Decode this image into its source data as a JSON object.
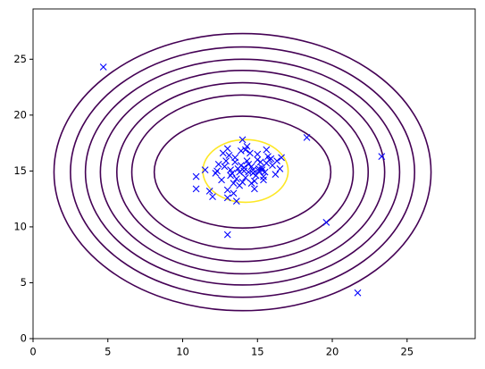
{
  "chart_data": {
    "type": "scatter",
    "xlim": [
      0,
      29.55
    ],
    "ylim": [
      0,
      29.5
    ],
    "xticks": [
      0,
      5,
      10,
      15,
      20,
      25
    ],
    "yticks": [
      0,
      5,
      10,
      15,
      20,
      25
    ],
    "marker": "x",
    "color": "#0000ff",
    "x": [
      4.7,
      18.3,
      23.3,
      19.6,
      21.7,
      13.0,
      10.9,
      10.9,
      12.0,
      13.0,
      13.6,
      11.8,
      16.5,
      14.0,
      12.3,
      12.8,
      13.2,
      13.5,
      13.8,
      14.1,
      14.4,
      14.7,
      15.0,
      15.3,
      15.6,
      15.9,
      12.6,
      13.1,
      13.4,
      13.9,
      14.2,
      14.5,
      14.8,
      15.1,
      15.4,
      15.7,
      16.0,
      12.9,
      13.3,
      13.7,
      14.0,
      14.3,
      14.6,
      14.9,
      15.2,
      15.5,
      13.5,
      13.8,
      14.2,
      14.6,
      15.0,
      15.4,
      12.4,
      13.0,
      13.6,
      14.1,
      14.7,
      15.3,
      15.8,
      16.2,
      13.2,
      13.9,
      14.4,
      15.1,
      12.7,
      14.3,
      15.6,
      13.4,
      14.8,
      16.3,
      11.5,
      12.2,
      16.6,
      13.0
    ],
    "y": [
      24.3,
      18.0,
      16.3,
      10.4,
      4.1,
      9.3,
      14.5,
      13.4,
      12.7,
      12.6,
      12.3,
      13.2,
      15.2,
      17.8,
      15.0,
      15.4,
      14.6,
      15.8,
      14.9,
      15.3,
      15.6,
      14.8,
      16.0,
      15.1,
      15.7,
      16.1,
      14.2,
      16.4,
      13.9,
      16.8,
      14.4,
      16.6,
      14.1,
      15.0,
      14.5,
      16.3,
      15.5,
      15.9,
      14.8,
      15.2,
      14.0,
      15.9,
      15.4,
      14.6,
      15.8,
      14.9,
      16.2,
      13.7,
      16.9,
      13.9,
      16.5,
      14.2,
      15.6,
      13.3,
      14.3,
      15.0,
      15.1,
      15.3,
      16.0,
      14.7,
      15.1,
      15.5,
      14.9,
      15.2,
      16.6,
      17.2,
      16.9,
      13.0,
      13.4,
      15.9,
      15.1,
      14.8,
      16.2,
      17.0
    ],
    "contours": [
      {
        "cx": 14,
        "cy": 14.9,
        "rx": 12.6,
        "ry": 12.4,
        "color": "#440154"
      },
      {
        "cx": 14,
        "cy": 14.9,
        "rx": 11.5,
        "ry": 11.2,
        "color": "#440154"
      },
      {
        "cx": 14,
        "cy": 14.9,
        "rx": 10.5,
        "ry": 10.1,
        "color": "#440154"
      },
      {
        "cx": 14,
        "cy": 14.9,
        "rx": 9.5,
        "ry": 9.1,
        "color": "#440154"
      },
      {
        "cx": 14,
        "cy": 14.9,
        "rx": 8.4,
        "ry": 8.0,
        "color": "#440154"
      },
      {
        "cx": 14,
        "cy": 14.9,
        "rx": 7.4,
        "ry": 6.9,
        "color": "#440154"
      },
      {
        "cx": 14,
        "cy": 14.9,
        "rx": 5.9,
        "ry": 5.0,
        "color": "#440154"
      },
      {
        "cx": 14.2,
        "cy": 15.0,
        "rx": 2.85,
        "ry": 2.8,
        "color": "#fde725"
      }
    ]
  }
}
